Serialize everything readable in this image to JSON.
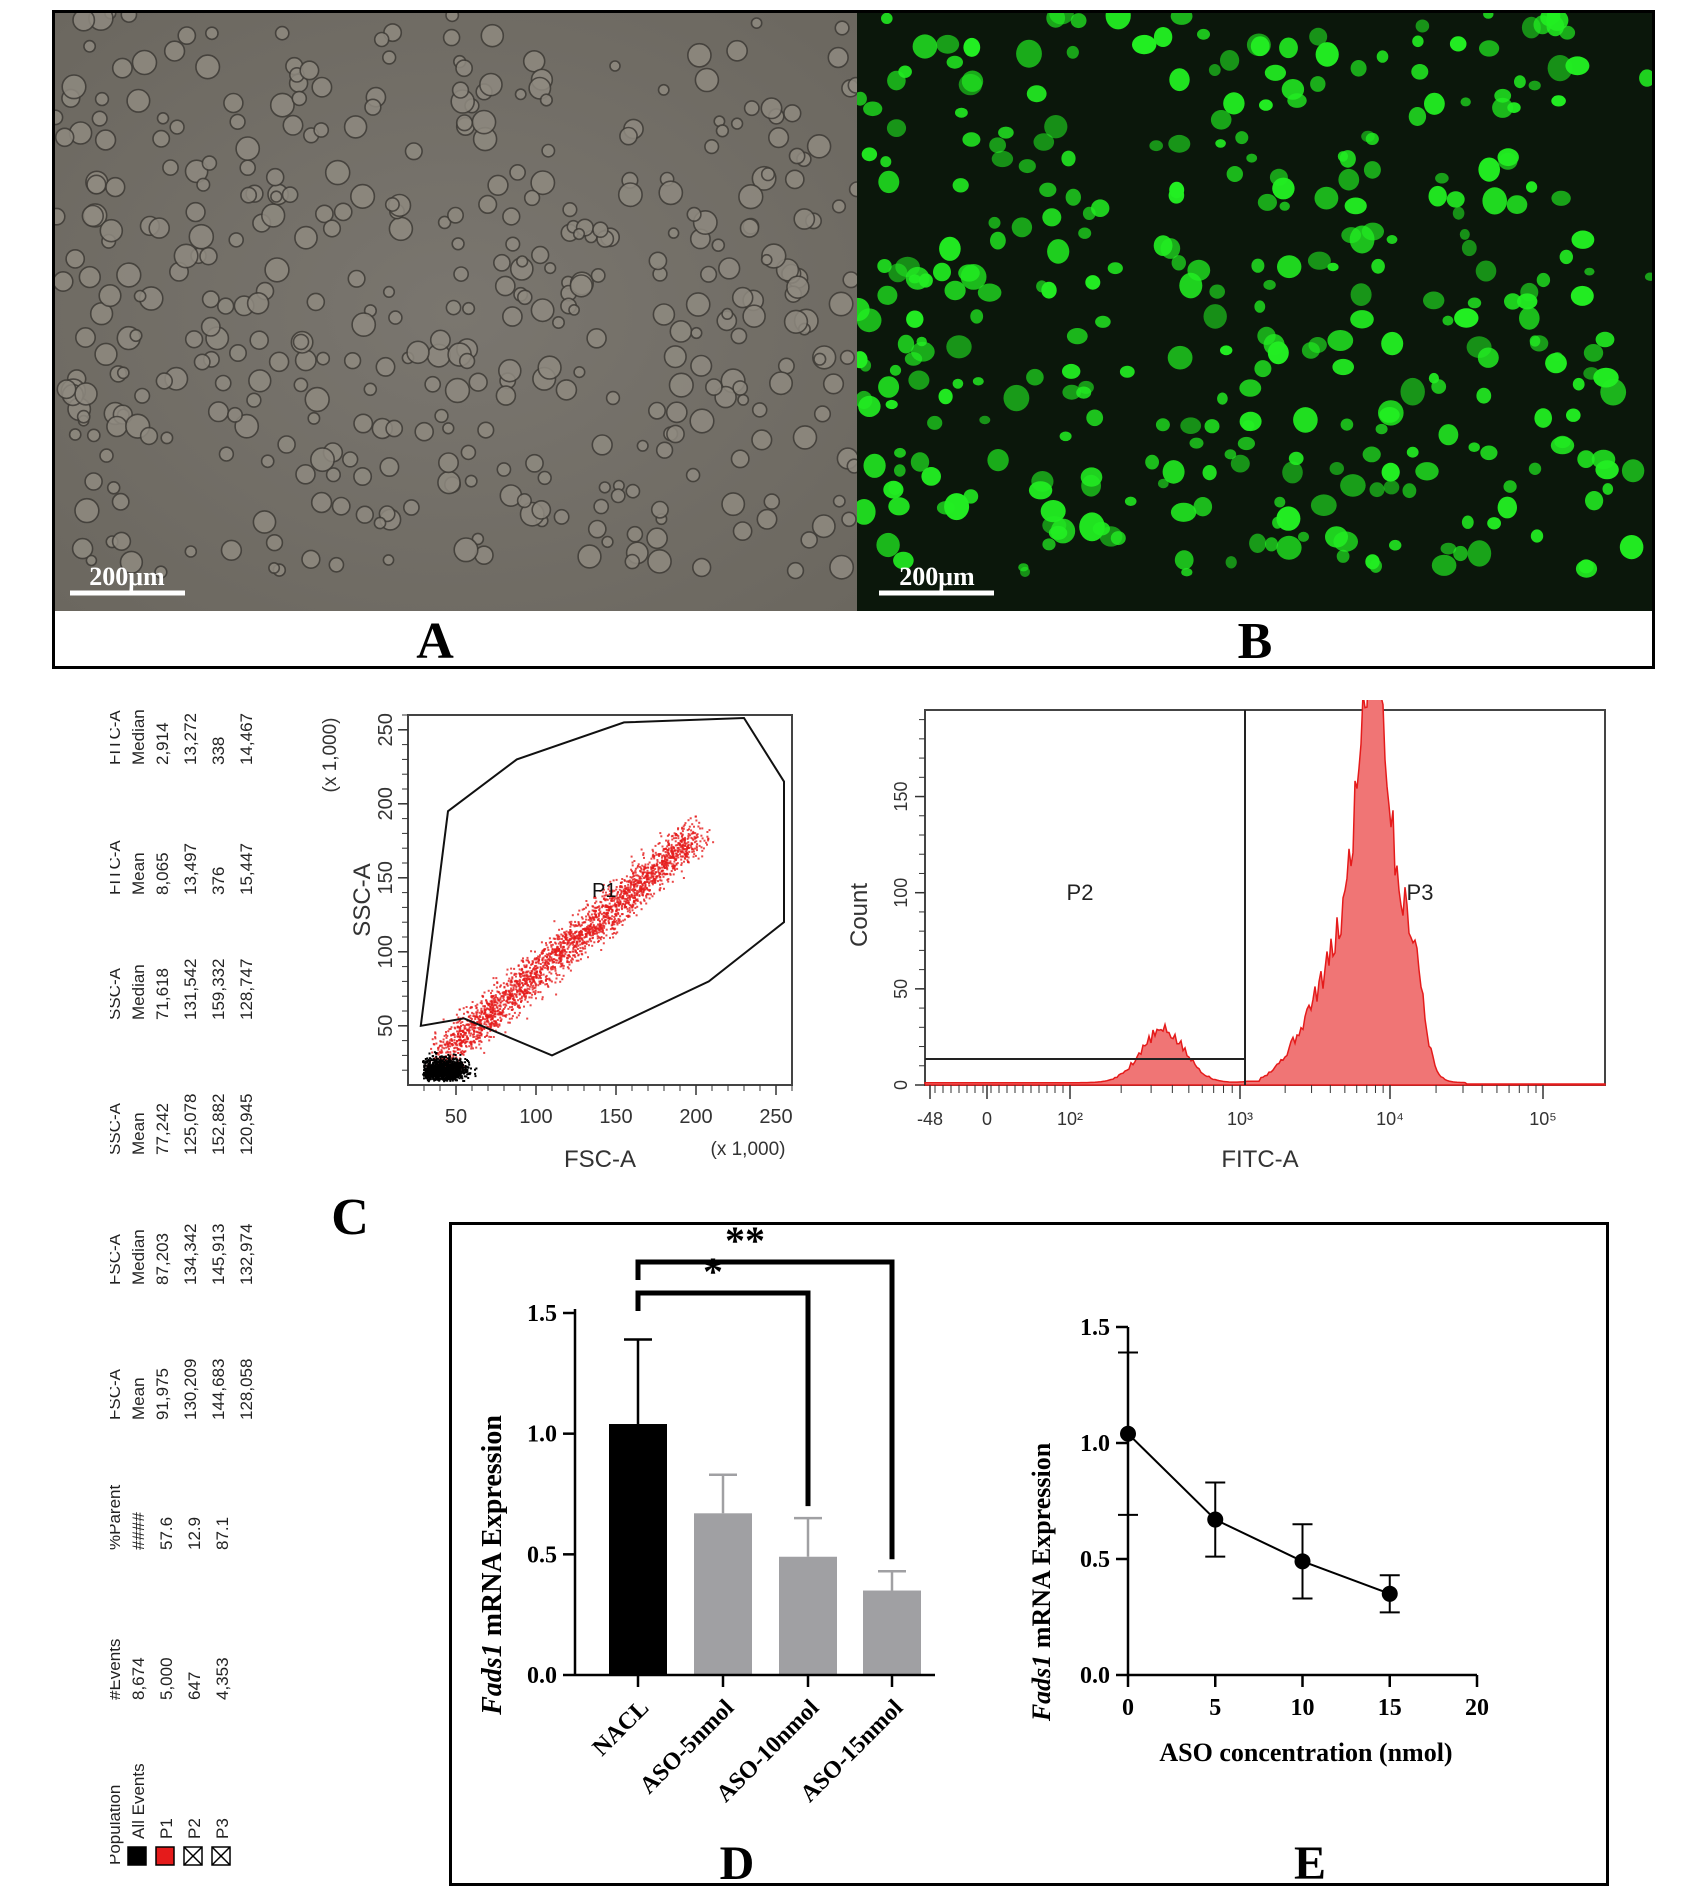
{
  "micrographs": {
    "bright_field": {
      "scalebar": "200μm",
      "cell_color": "#8f8a80",
      "background": "#736f68"
    },
    "fluorescence": {
      "scalebar": "200μm",
      "cell_color": "#22ee22",
      "background": "#0a1a0a"
    }
  },
  "panel_labels": {
    "a": "A",
    "b": "B",
    "c": "C",
    "d": "D",
    "e": "E"
  },
  "stats_table": {
    "headers": [
      "Population",
      "#Events",
      "%Parent",
      "FSC-A Mean",
      "FSC-A Median",
      "SSC-A Mean",
      "SSC-A Median",
      "FITC-A Mean",
      "FITC-A Median"
    ],
    "rows": [
      {
        "swatch": "black",
        "population": "All Events",
        "events": "8,674",
        "parent": "####",
        "fsc_mean": "91,975",
        "fsc_median": "87,203",
        "ssc_mean": "77,242",
        "ssc_median": "71,618",
        "fitc_mean": "8,065",
        "fitc_median": "2,914"
      },
      {
        "swatch": "red",
        "population": "P1",
        "events": "5,000",
        "parent": "57.6",
        "fsc_mean": "130,209",
        "fsc_median": "134,342",
        "ssc_mean": "125,078",
        "ssc_median": "131,542",
        "fitc_mean": "13,497",
        "fitc_median": "13,272"
      },
      {
        "swatch": "cross",
        "population": "P2",
        "events": "647",
        "parent": "12.9",
        "fsc_mean": "144,683",
        "fsc_median": "145,913",
        "ssc_mean": "152,882",
        "ssc_median": "159,332",
        "fitc_mean": "376",
        "fitc_median": "338"
      },
      {
        "swatch": "cross",
        "population": "P3",
        "events": "4,353",
        "parent": "87.1",
        "fsc_mean": "128,058",
        "fsc_median": "132,974",
        "ssc_mean": "120,945",
        "ssc_median": "128,747",
        "fitc_mean": "15,447",
        "fitc_median": "14,467"
      }
    ]
  },
  "chart_data": [
    {
      "type": "scatter",
      "xlabel": "FSC-A",
      "ylabel": "SSC-A",
      "x_multiplier": "(x 1,000)",
      "y_multiplier": "(x 1,000)",
      "xlim": [
        20,
        260
      ],
      "ylim": [
        10,
        260
      ],
      "xticks": [
        50,
        100,
        150,
        200,
        250
      ],
      "yticks": [
        50,
        100,
        150,
        200,
        250
      ],
      "gate_label": "P1",
      "gate_polygon": [
        [
          28,
          50
        ],
        [
          45,
          195
        ],
        [
          88,
          230
        ],
        [
          155,
          255
        ],
        [
          230,
          258
        ],
        [
          255,
          215
        ],
        [
          255,
          120
        ],
        [
          208,
          80
        ],
        [
          110,
          30
        ],
        [
          55,
          55
        ]
      ],
      "colors": {
        "gated": "#e51b1b",
        "ungated": "#000000"
      }
    },
    {
      "type": "area",
      "xlabel": "FITC-A",
      "ylabel": "Count",
      "ylim": [
        0,
        195
      ],
      "yticks": [
        0,
        50,
        100,
        150
      ],
      "xtick_labels": [
        "-48",
        "0",
        "10²",
        "10³",
        "10⁴",
        "10⁵"
      ],
      "gates": [
        {
          "label": "P2",
          "from": "-48",
          "to": "10³"
        },
        {
          "label": "P3",
          "from": "10³",
          "to": "10⁵"
        }
      ],
      "fill": "#f07575",
      "stroke": "#e51b1b"
    },
    {
      "type": "bar",
      "categories": [
        "NACL",
        "ASO-5nmol",
        "ASO-10nmol",
        "ASO-15nmol"
      ],
      "values": [
        1.04,
        0.67,
        0.49,
        0.35
      ],
      "errors": [
        0.35,
        0.16,
        0.16,
        0.08
      ],
      "colors": [
        "#000000",
        "#a0a0a3",
        "#a0a0a3",
        "#a0a0a3"
      ],
      "ylabel_italic": "Fads1",
      "ylabel_rest": " mRNA Expression",
      "ylim": [
        0,
        1.5
      ],
      "yticks": [
        "0.0",
        "0.5",
        "1.0",
        "1.5"
      ],
      "significance": [
        {
          "from": 0,
          "to": 2,
          "label": "*"
        },
        {
          "from": 0,
          "to": 3,
          "label": "**"
        }
      ]
    },
    {
      "type": "line",
      "x": [
        0,
        5,
        10,
        15
      ],
      "y": [
        1.04,
        0.67,
        0.49,
        0.35
      ],
      "errors": [
        0.35,
        0.16,
        0.16,
        0.08
      ],
      "xlabel": "ASO concentration (nmol)",
      "ylabel_italic": "Fads1",
      "ylabel_rest": " mRNA Expression",
      "xlim": [
        0,
        20
      ],
      "ylim": [
        0,
        1.5
      ],
      "xticks": [
        "0",
        "5",
        "10",
        "15",
        "20"
      ],
      "yticks": [
        "0.0",
        "0.5",
        "1.0",
        "1.5"
      ]
    }
  ]
}
